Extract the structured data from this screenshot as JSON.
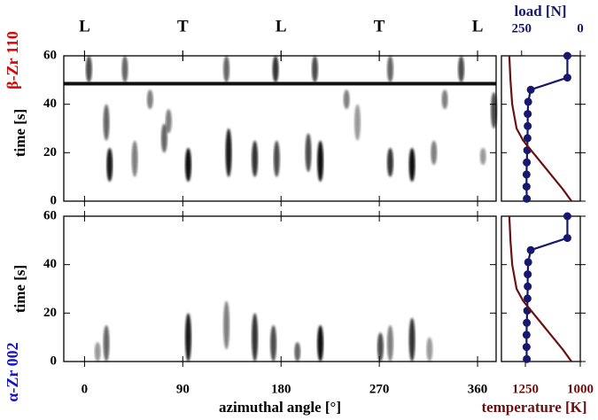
{
  "chart_data": [
    {
      "type": "heatmap",
      "panel_label": "β-Zr 110",
      "y_label": "time [s]",
      "xlim": [
        -19,
        377
      ],
      "ylim": [
        0,
        60
      ],
      "yticks": [
        0,
        20,
        40,
        60
      ],
      "top_ticks": [
        {
          "value": 0,
          "label": "L"
        },
        {
          "value": 90,
          "label": "T"
        },
        {
          "value": 180,
          "label": "L"
        },
        {
          "value": 270,
          "label": "T"
        },
        {
          "value": 360,
          "label": "L"
        }
      ],
      "band_t": 48.5,
      "streaks": {
        "angle": [
          23,
          20,
          46,
          73,
          77,
          95,
          132,
          156,
          176,
          205,
          216,
          250,
          280,
          300,
          320,
          365,
          375,
          4,
          37,
          130,
          175,
          211,
          280,
          345,
          60,
          240,
          330
        ],
        "t_start": [
          8,
          25,
          10,
          20,
          28,
          8,
          10,
          10,
          10,
          12,
          8,
          25,
          10,
          8,
          15,
          15,
          30,
          49,
          49,
          49,
          49,
          49,
          49,
          49,
          38,
          38,
          38
        ],
        "t_end": [
          22,
          40,
          25,
          32,
          38,
          22,
          30,
          25,
          25,
          28,
          25,
          40,
          22,
          22,
          25,
          22,
          45,
          60,
          60,
          60,
          60,
          60,
          60,
          60,
          46,
          46,
          46
        ],
        "intensity": [
          0.9,
          0.6,
          0.5,
          0.6,
          0.5,
          0.95,
          0.9,
          0.8,
          0.7,
          0.7,
          0.95,
          0.4,
          0.8,
          0.95,
          0.5,
          0.4,
          0.7,
          0.7,
          0.6,
          0.6,
          0.8,
          0.7,
          0.6,
          0.7,
          0.5,
          0.5,
          0.5
        ]
      }
    },
    {
      "type": "heatmap",
      "panel_label": "α-Zr 002",
      "y_label": "time [s]",
      "x_label": "azimuthal angle [°]",
      "xlim": [
        -19,
        377
      ],
      "ylim": [
        0,
        60
      ],
      "yticks": [
        0,
        20,
        40,
        60
      ],
      "xticks": [
        0,
        90,
        180,
        270,
        360
      ],
      "streaks": {
        "angle": [
          12,
          20,
          95,
          130,
          156,
          173,
          195,
          216,
          271,
          280,
          300,
          316
        ],
        "t_start": [
          0,
          0,
          0,
          5,
          0,
          0,
          0,
          0,
          0,
          0,
          0,
          0
        ],
        "t_end": [
          8,
          15,
          20,
          25,
          20,
          15,
          8,
          15,
          12,
          15,
          18,
          10
        ],
        "intensity": [
          0.4,
          0.6,
          0.9,
          0.5,
          0.8,
          0.7,
          0.6,
          0.95,
          0.7,
          0.5,
          0.8,
          0.4
        ]
      }
    },
    {
      "type": "line",
      "ylim": [
        0,
        60
      ],
      "yticks": [
        0,
        20,
        40,
        60
      ],
      "x2lim": [
        336,
        0
      ],
      "x2ticks": [
        250,
        0
      ],
      "xlim": [
        1359,
        1000
      ],
      "xticks": [
        1250,
        1000
      ],
      "series": [
        {
          "name": "load [N]",
          "color": "#16196b",
          "axis": "x2",
          "markers": true,
          "t": [
            1,
            6,
            11,
            16,
            21,
            26,
            31,
            36,
            41,
            46,
            51,
            60
          ],
          "values": [
            228,
            229,
            229,
            228,
            226,
            225,
            224,
            224,
            222,
            211,
            55,
            55
          ]
        },
        {
          "name": "temperature [K]",
          "color": "#6b1010",
          "axis": "x",
          "markers": false,
          "t": [
            0,
            5,
            10,
            15,
            20,
            25,
            30,
            40,
            50,
            60
          ],
          "values": [
            1040,
            1080,
            1125,
            1170,
            1215,
            1260,
            1290,
            1310,
            1318,
            1323
          ]
        }
      ]
    }
  ]
}
